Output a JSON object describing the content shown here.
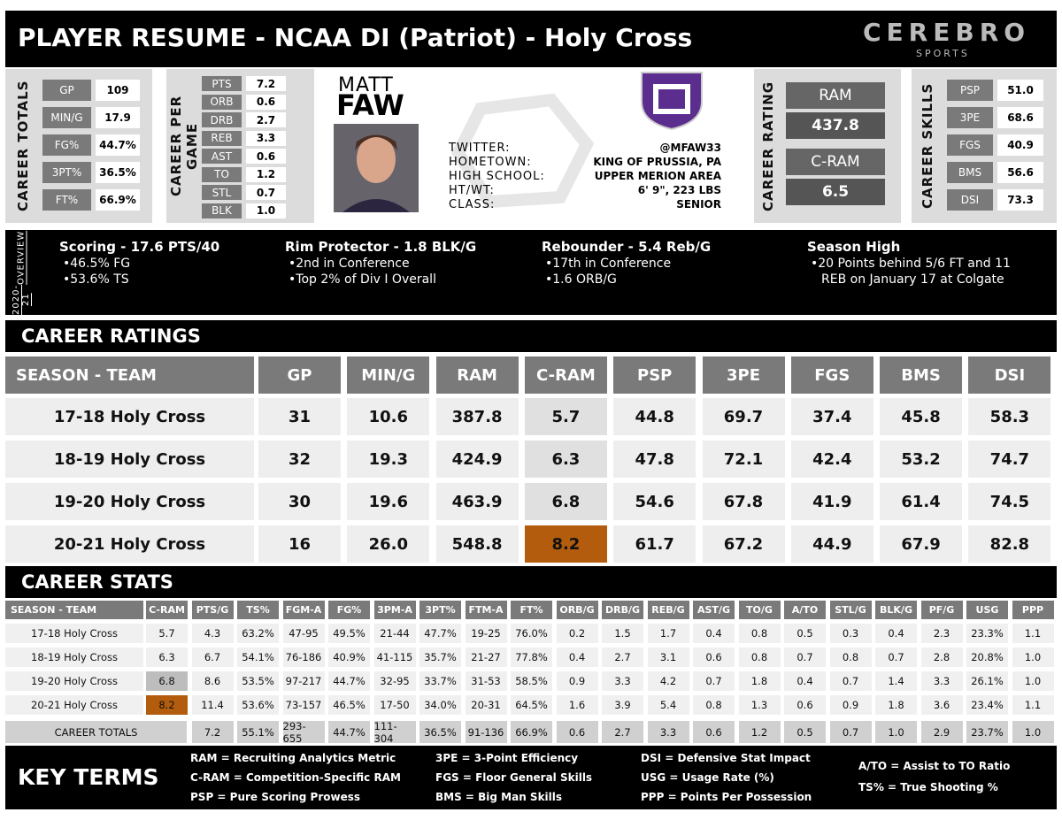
{
  "header": {
    "title": "PLAYER RESUME - NCAA DI (Patriot) - Holy Cross",
    "logo": "CEREBRO",
    "logo_sub": "SPORTS"
  },
  "career_totals": {
    "label": "CAREER TOTALS",
    "rows": [
      [
        "GP",
        "109"
      ],
      [
        "MIN/G",
        "17.9"
      ],
      [
        "FG%",
        "44.7%"
      ],
      [
        "3PT%",
        "36.5%"
      ],
      [
        "FT%",
        "66.9%"
      ]
    ]
  },
  "career_per_game": {
    "label": "CAREER PER GAME",
    "rows": [
      [
        "PTS",
        "7.2"
      ],
      [
        "ORB",
        "0.6"
      ],
      [
        "DRB",
        "2.7"
      ],
      [
        "REB",
        "3.3"
      ],
      [
        "AST",
        "0.6"
      ],
      [
        "TO",
        "1.2"
      ],
      [
        "STL",
        "0.7"
      ],
      [
        "BLK",
        "1.0"
      ]
    ]
  },
  "player": {
    "first_name": "MATT",
    "last_name": "FAW",
    "info": [
      [
        "TWITTER:",
        "@MFAW33"
      ],
      [
        "HOMETOWN:",
        "KING OF PRUSSIA, PA"
      ],
      [
        "HIGH SCHOOL:",
        "UPPER MERION AREA"
      ],
      [
        "HT/WT:",
        "6' 9\", 223 LBS"
      ],
      [
        "CLASS:",
        "SENIOR"
      ]
    ]
  },
  "career_rating": {
    "label": "CAREER RATING",
    "items": [
      [
        "RAM",
        "437.8"
      ],
      [
        "C-RAM",
        "6.5"
      ]
    ]
  },
  "career_skills": {
    "label": "CAREER SKILLS",
    "rows": [
      [
        "PSP",
        "51.0"
      ],
      [
        "3PE",
        "68.6"
      ],
      [
        "FGS",
        "40.9"
      ],
      [
        "BMS",
        "56.6"
      ],
      [
        "DSI",
        "73.3"
      ]
    ]
  },
  "overview": {
    "label": [
      "2020-21",
      "OVERVIEW"
    ],
    "items": [
      {
        "title": "Scoring - 17.6 PTS/40",
        "bullets": [
          "46.5% FG",
          "53.6% TS"
        ]
      },
      {
        "title": "Rim Protector - 1.8 BLK/G",
        "bullets": [
          "2nd in Conference",
          "Top 2% of Div I Overall"
        ]
      },
      {
        "title": "Rebounder - 5.4 Reb/G",
        "bullets": [
          "17th in Conference",
          "1.6 ORB/G"
        ]
      },
      {
        "title": "Season High",
        "bullets": [
          "20 Points behind 5/6 FT and 11 REB on January 17 at Colgate"
        ]
      }
    ]
  },
  "career_ratings": {
    "title": "CAREER RATINGS",
    "columns": [
      "SEASON - TEAM",
      "GP",
      "MIN/G",
      "RAM",
      "C-RAM",
      "PSP",
      "3PE",
      "FGS",
      "BMS",
      "DSI"
    ],
    "rows": [
      [
        "17-18 Holy Cross",
        "31",
        "10.6",
        "387.8",
        "5.7",
        "44.8",
        "69.7",
        "37.4",
        "45.8",
        "58.3"
      ],
      [
        "18-19 Holy Cross",
        "32",
        "19.3",
        "424.9",
        "6.3",
        "47.8",
        "72.1",
        "42.4",
        "53.2",
        "74.7"
      ],
      [
        "19-20 Holy Cross",
        "30",
        "19.6",
        "463.9",
        "6.8",
        "54.6",
        "67.8",
        "41.9",
        "61.4",
        "74.5"
      ],
      [
        "20-21 Holy Cross",
        "16",
        "26.0",
        "548.8",
        "8.2",
        "61.7",
        "67.2",
        "44.9",
        "67.9",
        "82.8"
      ]
    ]
  },
  "career_stats": {
    "title": "CAREER STATS",
    "columns": [
      "SEASON - TEAM",
      "C-RAM",
      "PTS/G",
      "TS%",
      "FGM-A",
      "FG%",
      "3PM-A",
      "3PT%",
      "FTM-A",
      "FT%",
      "ORB/G",
      "DRB/G",
      "REB/G",
      "AST/G",
      "TO/G",
      "A/TO",
      "STL/G",
      "BLK/G",
      "PF/G",
      "USG",
      "PPP"
    ],
    "rows": [
      [
        "17-18 Holy Cross",
        "5.7",
        "4.3",
        "63.2%",
        "47-95",
        "49.5%",
        "21-44",
        "47.7%",
        "19-25",
        "76.0%",
        "0.2",
        "1.5",
        "1.7",
        "0.4",
        "0.8",
        "0.5",
        "0.3",
        "0.4",
        "2.3",
        "23.3%",
        "1.1"
      ],
      [
        "18-19 Holy Cross",
        "6.3",
        "6.7",
        "54.1%",
        "76-186",
        "40.9%",
        "41-115",
        "35.7%",
        "21-27",
        "77.8%",
        "0.4",
        "2.7",
        "3.1",
        "0.6",
        "0.8",
        "0.7",
        "0.8",
        "0.7",
        "2.8",
        "20.8%",
        "1.0"
      ],
      [
        "19-20 Holy Cross",
        "6.8",
        "8.6",
        "53.5%",
        "97-217",
        "44.7%",
        "32-95",
        "33.7%",
        "31-53",
        "58.5%",
        "0.9",
        "3.3",
        "4.2",
        "0.7",
        "1.8",
        "0.4",
        "0.7",
        "1.4",
        "3.3",
        "26.1%",
        "1.0"
      ],
      [
        "20-21 Holy Cross",
        "8.2",
        "11.4",
        "53.6%",
        "73-157",
        "46.5%",
        "17-50",
        "34.0%",
        "20-31",
        "64.5%",
        "1.6",
        "3.9",
        "5.4",
        "0.8",
        "1.3",
        "0.6",
        "0.9",
        "1.8",
        "3.6",
        "23.4%",
        "1.1"
      ]
    ],
    "totals": [
      "CAREER TOTALS",
      "",
      "7.2",
      "55.1%",
      "293-655",
      "44.7%",
      "111-304",
      "36.5%",
      "91-136",
      "66.9%",
      "0.6",
      "2.7",
      "3.3",
      "0.6",
      "1.2",
      "0.5",
      "0.7",
      "1.0",
      "2.9",
      "23.7%",
      "1.0"
    ]
  },
  "key_terms": {
    "title": "KEY TERMS",
    "columns": [
      [
        "RAM = Recruiting Analytics Metric",
        "C-RAM = Competition-Specific RAM",
        "PSP = Pure Scoring Prowess"
      ],
      [
        "3PE = 3-Point Efficiency",
        "FGS = Floor General Skills",
        "BMS = Big Man Skills"
      ],
      [
        "DSI = Defensive Stat Impact",
        "USG = Usage Rate (%)",
        "PPP = Points Per Possession"
      ],
      [
        "A/TO = Assist to TO Ratio",
        "TS% = True Shooting %"
      ]
    ]
  }
}
